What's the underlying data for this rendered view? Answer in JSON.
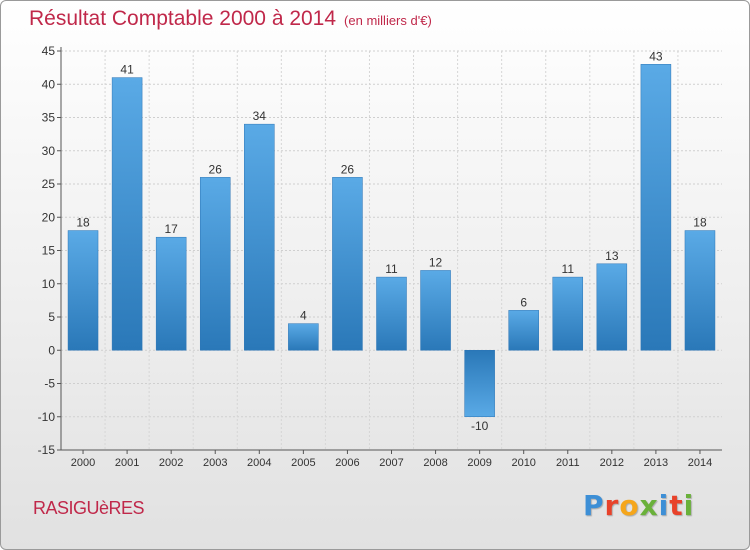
{
  "header": {
    "title": "Résultat Comptable 2000 à 2014",
    "subtitle": "(en milliers d'€)"
  },
  "footer": {
    "town": "RASIGUèRES",
    "brand_letters": [
      "P",
      "r",
      "o",
      "x",
      "i",
      "t",
      "i"
    ],
    "brand_colors": [
      "#3d8fd6",
      "#e8422a",
      "#f5a61b",
      "#6ab13a",
      "#3d8fd6",
      "#e8422a",
      "#6ab13a"
    ]
  },
  "chart_data": {
    "type": "bar",
    "categories": [
      "2000",
      "2001",
      "2002",
      "2003",
      "2004",
      "2005",
      "2006",
      "2007",
      "2008",
      "2009",
      "2010",
      "2011",
      "2012",
      "2013",
      "2014"
    ],
    "values": [
      18,
      41,
      17,
      26,
      34,
      4,
      26,
      11,
      12,
      -10,
      6,
      11,
      13,
      43,
      18
    ],
    "value_labels": [
      "18",
      "41",
      "17",
      "26",
      "34",
      "4",
      "26",
      "11",
      "12",
      "-10",
      "6",
      "11",
      "13",
      "43",
      "18"
    ],
    "y_ticks": [
      -15,
      -10,
      -5,
      0,
      5,
      10,
      15,
      20,
      25,
      30,
      35,
      40,
      45
    ],
    "ylim": [
      -15,
      45
    ],
    "grid": true,
    "bar_color": "#3f97d9",
    "bar_color_dark": "#2b74b5"
  }
}
